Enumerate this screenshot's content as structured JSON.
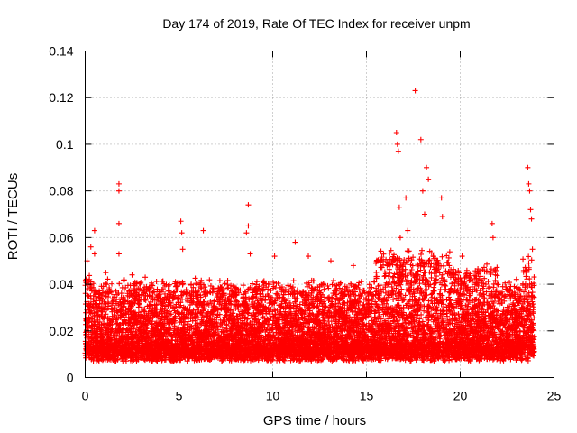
{
  "colors": {
    "series": "#ff0000",
    "grid": "#a0a0a0",
    "axis": "#000000",
    "background": "#ffffff"
  },
  "chart_data": {
    "type": "scatter",
    "title": "Day 174 of 2019, Rate Of TEC Index for receiver unpm",
    "xlabel": "GPS time / hours",
    "ylabel": "ROTI / TECUs",
    "xlim": [
      0,
      25
    ],
    "ylim": [
      0,
      0.14
    ],
    "xticks": [
      0,
      5,
      10,
      15,
      20,
      25
    ],
    "yticks": [
      0,
      0.02,
      0.04,
      0.06,
      0.08,
      0.1,
      0.12,
      0.14
    ],
    "xtick_labels": [
      "0",
      "5",
      "10",
      "15",
      "20",
      "25"
    ],
    "ytick_labels": [
      "0",
      "0.02",
      "0.04",
      "0.06",
      "0.08",
      "0.1",
      "0.12",
      "0.14"
    ],
    "grid": true,
    "marker": "+",
    "series": [
      {
        "name": "ROTI",
        "note": "dense cloud of many thousands of points, approx. 0.005-0.045 TECU/min across 0-24 h; notable outliers listed",
        "x": [
          0.1,
          0.3,
          0.5,
          0.5,
          1.1,
          1.8,
          1.8,
          1.8,
          1.8,
          2.5,
          3.2,
          5.1,
          5.15,
          5.2,
          6.3,
          8.6,
          8.7,
          8.7,
          8.8,
          10.1,
          11.2,
          11.9,
          13.1,
          14.3,
          16.6,
          16.65,
          16.7,
          16.75,
          16.8,
          17.1,
          17.2,
          17.6,
          17.9,
          18.0,
          18.2,
          18.3,
          18.1,
          19.0,
          19.05,
          20.1,
          21.7,
          21.75,
          23.6,
          23.65,
          23.7,
          23.75,
          23.8,
          23.85
        ],
        "values": [
          0.05,
          0.056,
          0.063,
          0.053,
          0.045,
          0.083,
          0.08,
          0.066,
          0.053,
          0.044,
          0.043,
          0.067,
          0.062,
          0.055,
          0.063,
          0.062,
          0.074,
          0.065,
          0.053,
          0.052,
          0.058,
          0.052,
          0.05,
          0.048,
          0.105,
          0.1,
          0.097,
          0.073,
          0.06,
          0.077,
          0.063,
          0.123,
          0.102,
          0.08,
          0.09,
          0.085,
          0.07,
          0.077,
          0.069,
          0.052,
          0.066,
          0.06,
          0.09,
          0.083,
          0.08,
          0.072,
          0.068,
          0.055
        ]
      }
    ]
  }
}
